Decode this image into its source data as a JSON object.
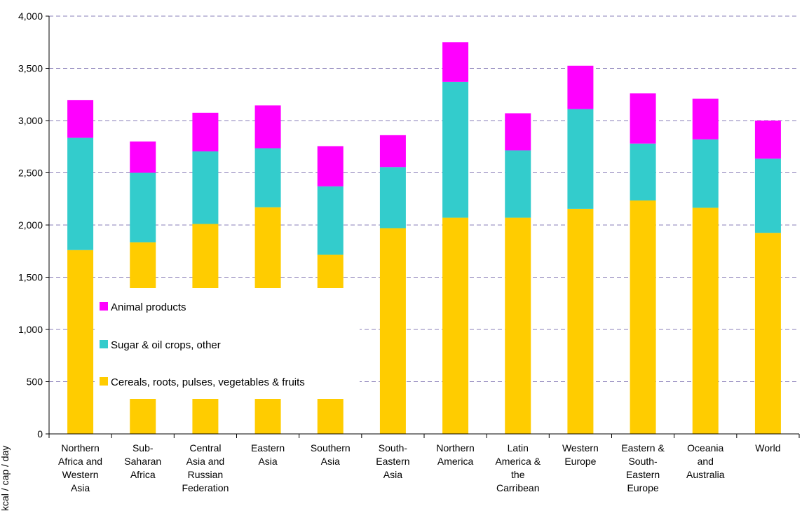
{
  "chart_data": {
    "type": "bar",
    "stacked": true,
    "ylabel": "kcal / cap / day",
    "ylim": [
      0,
      4000
    ],
    "yticks": [
      0,
      500,
      1000,
      1500,
      2000,
      2500,
      3000,
      3500,
      4000
    ],
    "ytick_labels": [
      "0",
      "500",
      "1,000",
      "1,500",
      "2,000",
      "2,500",
      "3,000",
      "3,500",
      "4,000"
    ],
    "grid": "horizontal-dashed",
    "legend_position": "left-middle",
    "categories": [
      [
        "Northern",
        "Africa and",
        "Western",
        "Asia"
      ],
      [
        "Sub-",
        "Saharan",
        "Africa"
      ],
      [
        "Central",
        "Asia and",
        "Russian",
        "Federation"
      ],
      [
        "Eastern",
        "Asia"
      ],
      [
        "Southern",
        "Asia"
      ],
      [
        "South-",
        "Eastern",
        "Asia"
      ],
      [
        "Northern",
        "America"
      ],
      [
        "Latin",
        "America &",
        "the",
        "Carribean"
      ],
      [
        "Western",
        "Europe"
      ],
      [
        "Eastern &",
        "South-",
        "Eastern",
        "Europe"
      ],
      [
        "Oceania",
        "and",
        "Australia"
      ],
      [
        "World"
      ]
    ],
    "series": [
      {
        "name": "Cereals, roots, pulses, vegetables & fruits",
        "color": "#ffcc00",
        "values": [
          1760,
          1835,
          2010,
          2170,
          1715,
          1970,
          2070,
          2070,
          2155,
          2235,
          2165,
          1925
        ]
      },
      {
        "name": "Sugar & oil crops, other",
        "color": "#33cccc",
        "values": [
          1075,
          665,
          695,
          565,
          655,
          585,
          1300,
          645,
          955,
          545,
          655,
          710
        ]
      },
      {
        "name": "Animal products",
        "color": "#ff00ff",
        "values": [
          360,
          300,
          370,
          410,
          385,
          305,
          380,
          355,
          415,
          480,
          390,
          365
        ]
      }
    ],
    "legend_order": [
      "Animal products",
      "Sugar & oil crops, other",
      "Cereals, roots, pulses, vegetables & fruits"
    ]
  }
}
